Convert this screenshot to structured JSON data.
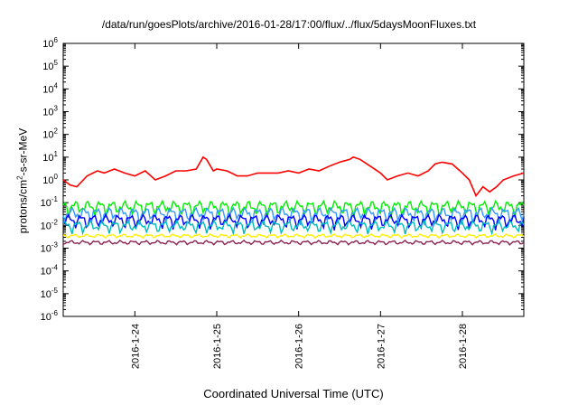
{
  "chart_data": {
    "type": "line",
    "title": "/data/run/goesPlots/archive/2016-01-28/17:00/flux/../flux/5daysMoonFluxes.txt",
    "xlabel": "Coordinated Universal Time (UTC)",
    "ylabel": {
      "base": "protons/cm",
      "exp": "2",
      "rest": "-s-sr-MeV"
    },
    "y_scale": "log",
    "ylim": [
      1e-06,
      1000000.0
    ],
    "y_ticks": [
      {
        "base": "10",
        "exp": "-6",
        "value": 1e-06
      },
      {
        "base": "10",
        "exp": "-5",
        "value": 1e-05
      },
      {
        "base": "10",
        "exp": "-4",
        "value": 0.0001
      },
      {
        "base": "10",
        "exp": "-3",
        "value": 0.001
      },
      {
        "base": "10",
        "exp": "-2",
        "value": 0.01
      },
      {
        "base": "10",
        "exp": "-1",
        "value": 0.1
      },
      {
        "base": "10",
        "exp": "0",
        "value": 1
      },
      {
        "base": "10",
        "exp": "1",
        "value": 10
      },
      {
        "base": "10",
        "exp": "2",
        "value": 100
      },
      {
        "base": "10",
        "exp": "3",
        "value": 1000
      },
      {
        "base": "10",
        "exp": "4",
        "value": 10000
      },
      {
        "base": "10",
        "exp": "5",
        "value": 100000
      },
      {
        "base": "10",
        "exp": "6",
        "value": 1000000
      }
    ],
    "x_axis": {
      "type": "date",
      "min": "2016-01-23T03:00",
      "max": "2016-01-28T18:00"
    },
    "x_ticks": [
      "2016-1-24",
      "2016-1-25",
      "2016-1-26",
      "2016-1-27",
      "2016-1-28"
    ],
    "x_tick_dates": [
      "2016-01-24T00:00",
      "2016-01-25T00:00",
      "2016-01-26T00:00",
      "2016-01-27T00:00",
      "2016-01-28T00:00"
    ],
    "grid": false,
    "legend": "none",
    "series": [
      {
        "color": "#ff0000",
        "x": [
          "2016-01-23T03:00",
          "2016-01-23T05:00",
          "2016-01-23T07:00",
          "2016-01-23T10:00",
          "2016-01-23T13:00",
          "2016-01-23T15:00",
          "2016-01-23T18:00",
          "2016-01-23T21:00",
          "2016-01-24T00:00",
          "2016-01-24T03:00",
          "2016-01-24T06:00",
          "2016-01-24T09:00",
          "2016-01-24T12:00",
          "2016-01-24T15:00",
          "2016-01-24T18:00",
          "2016-01-24T20:00",
          "2016-01-24T21:00",
          "2016-01-24T23:00",
          "2016-01-25T00:00",
          "2016-01-25T03:00",
          "2016-01-25T06:00",
          "2016-01-25T09:00",
          "2016-01-25T12:00",
          "2016-01-25T15:00",
          "2016-01-25T18:00",
          "2016-01-25T21:00",
          "2016-01-26T00:00",
          "2016-01-26T03:00",
          "2016-01-26T06:00",
          "2016-01-26T09:00",
          "2016-01-26T12:00",
          "2016-01-26T15:00",
          "2016-01-26T16:00",
          "2016-01-26T18:00",
          "2016-01-26T21:00",
          "2016-01-27T00:00",
          "2016-01-27T02:00",
          "2016-01-27T05:00",
          "2016-01-27T08:00",
          "2016-01-27T11:00",
          "2016-01-27T14:00",
          "2016-01-27T16:00",
          "2016-01-27T18:00",
          "2016-01-27T21:00",
          "2016-01-28T00:00",
          "2016-01-28T02:00",
          "2016-01-28T04:00",
          "2016-01-28T06:00",
          "2016-01-28T08:00",
          "2016-01-28T10:00",
          "2016-01-28T12:00",
          "2016-01-28T15:00",
          "2016-01-28T18:00"
        ],
        "values": [
          1.0,
          0.6,
          0.5,
          1.5,
          2.5,
          2.0,
          3.0,
          2.0,
          1.5,
          2.5,
          1.0,
          1.5,
          2.5,
          2.5,
          3.0,
          10,
          8,
          2.5,
          3.0,
          2.5,
          1.5,
          1.5,
          2.0,
          2.0,
          2.0,
          2.5,
          2.0,
          3.0,
          2.5,
          4.0,
          6.0,
          8.0,
          10,
          8.0,
          4.0,
          2.0,
          1.0,
          1.5,
          2.0,
          1.5,
          2.5,
          5.0,
          6.0,
          5.0,
          2.0,
          1.0,
          0.2,
          0.5,
          0.3,
          0.5,
          1.0,
          1.5,
          2.0
        ]
      },
      {
        "color": "#00ee00",
        "baseline": 0.07,
        "amplitude": 0.05,
        "phase": 1
      },
      {
        "color": "#3399ff",
        "baseline": 0.035,
        "amplitude": 0.025,
        "phase": 2
      },
      {
        "color": "#0000ff",
        "baseline": 0.018,
        "amplitude": 0.012,
        "phase": 3
      },
      {
        "color": "#00bbbb",
        "baseline": 0.01,
        "amplitude": 0.006,
        "phase": 4
      },
      {
        "color": "#ffee00",
        "baseline": 0.0035,
        "amplitude": 0.0007,
        "phase": 5
      },
      {
        "color": "#8b2252",
        "baseline": 0.0018,
        "amplitude": 0.0004,
        "phase": 6
      }
    ]
  }
}
